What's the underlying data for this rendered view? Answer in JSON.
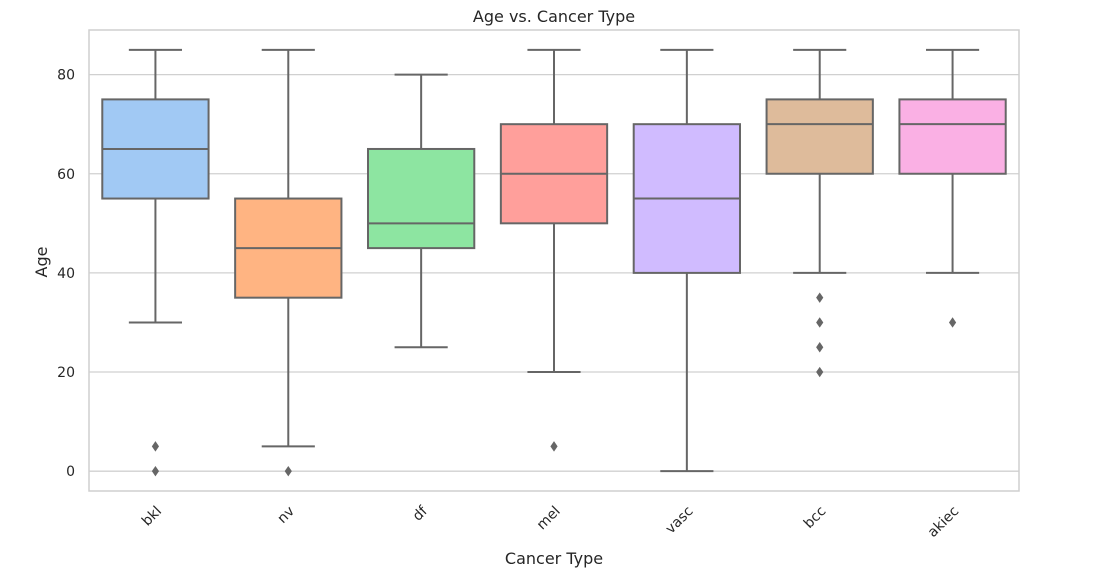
{
  "chart_data": {
    "type": "box",
    "title": "Age vs. Cancer Type",
    "xlabel": "Cancer Type",
    "ylabel": "Age",
    "ylim": [
      -4,
      89
    ],
    "yticks": [
      0,
      20,
      40,
      60,
      80
    ],
    "grid": true,
    "legend": "none",
    "categories": [
      "bkl",
      "nv",
      "df",
      "mel",
      "vasc",
      "bcc",
      "akiec"
    ],
    "colors": [
      "#a1c9f4",
      "#ffb482",
      "#8de5a1",
      "#ff9f9b",
      "#d0bbff",
      "#debb9b",
      "#fab0e4"
    ],
    "series": [
      {
        "whisker_low": 30,
        "q1": 55,
        "median": 65,
        "q3": 75,
        "whisker_high": 85,
        "outliers": [
          5,
          0
        ]
      },
      {
        "whisker_low": 5,
        "q1": 35,
        "median": 45,
        "q3": 55,
        "whisker_high": 85,
        "outliers": [
          0
        ]
      },
      {
        "whisker_low": 25,
        "q1": 45,
        "median": 50,
        "q3": 65,
        "whisker_high": 80,
        "outliers": []
      },
      {
        "whisker_low": 20,
        "q1": 50,
        "median": 60,
        "q3": 70,
        "whisker_high": 85,
        "outliers": [
          5
        ]
      },
      {
        "whisker_low": 0,
        "q1": 40,
        "median": 55,
        "q3": 70,
        "whisker_high": 85,
        "outliers": []
      },
      {
        "whisker_low": 40,
        "q1": 60,
        "median": 70,
        "q3": 75,
        "whisker_high": 85,
        "outliers": [
          35,
          30,
          25,
          20
        ]
      },
      {
        "whisker_low": 40,
        "q1": 60,
        "median": 70,
        "q3": 75,
        "whisker_high": 85,
        "outliers": [
          30
        ]
      }
    ]
  },
  "style": {
    "line_color": "#666666",
    "grid_color": "#d0d0d0",
    "text_color": "#262626"
  }
}
